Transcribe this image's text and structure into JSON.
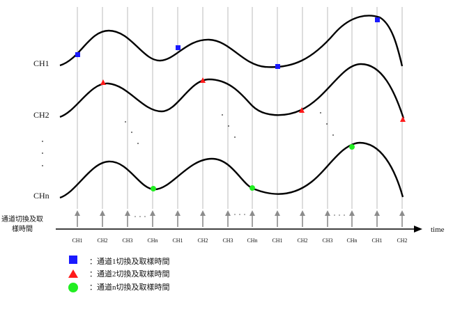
{
  "channels": {
    "ch1": "CH1",
    "ch2": "CH2",
    "chn": "CHn"
  },
  "time_axis": {
    "label": "time",
    "tick_labels": [
      "CH1",
      "CH2",
      "CH3",
      "CHn",
      "CH1",
      "CH2",
      "CH3",
      "CHn",
      "CH1",
      "CH2",
      "CH3",
      "CHn",
      "CH1",
      "CH2"
    ]
  },
  "side_label": {
    "line1": "通道切換及取",
    "line2": "樣時間"
  },
  "legend": [
    {
      "marker": "square",
      "color": "#1a1aff",
      "text": "：通道1切換及取樣時間"
    },
    {
      "marker": "triangle",
      "color": "#ff1a1a",
      "text": "：通道2切換及取樣時間"
    },
    {
      "marker": "circle",
      "color": "#22ee22",
      "text": "：通道n切換及取樣時間"
    }
  ],
  "colors": {
    "curve": "#000000",
    "gridline": "#bbbbbb",
    "arrow": "#8c8c8c",
    "ch1_marker": "#1a1aff",
    "ch2_marker": "#ff1a1a",
    "chn_marker": "#22ee22"
  }
}
